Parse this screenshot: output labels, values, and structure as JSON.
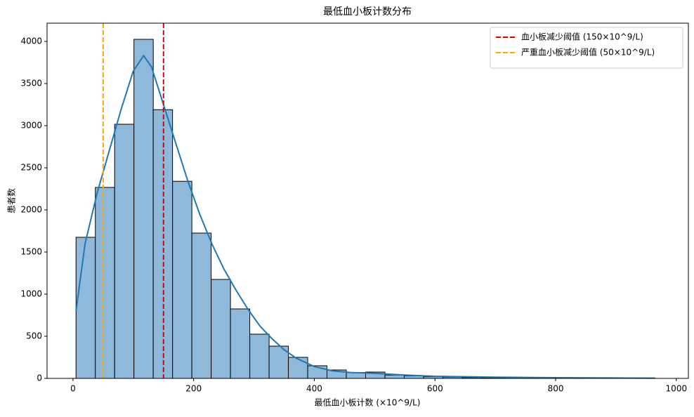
{
  "chart_data": {
    "type": "histogram",
    "title": "最低血小板计数分布",
    "xlabel": "最低血小板计数 (×10^9/L)",
    "ylabel": "患者数",
    "bins": [
      5,
      37,
      69,
      101,
      133,
      165,
      197,
      229,
      261,
      293,
      325,
      357,
      389,
      421,
      453,
      485,
      517,
      549,
      581,
      613,
      645,
      677,
      709,
      741,
      773,
      805,
      837,
      869,
      901,
      933,
      965
    ],
    "values": [
      1675,
      2267,
      3017,
      4025,
      3190,
      2340,
      1725,
      1175,
      825,
      525,
      383,
      250,
      150,
      100,
      70,
      75,
      40,
      30,
      20,
      15,
      10,
      8,
      6,
      5,
      4,
      3,
      2,
      2,
      1,
      1
    ],
    "color": "#8fb9da",
    "edgecolor": "#000000",
    "kde": {
      "color": "#1f77b4",
      "x": [
        5,
        20,
        40,
        60,
        80,
        100,
        117,
        130,
        150,
        170,
        190,
        210,
        230,
        250,
        270,
        290,
        310,
        330,
        350,
        370,
        400,
        430,
        460,
        500,
        550,
        600,
        700,
        800,
        900,
        965
      ],
      "values": [
        800,
        1600,
        2200,
        2700,
        3200,
        3650,
        3830,
        3700,
        3250,
        2800,
        2350,
        1950,
        1600,
        1300,
        1050,
        820,
        620,
        470,
        340,
        240,
        140,
        90,
        70,
        60,
        40,
        25,
        15,
        8,
        5,
        3
      ]
    },
    "lines": [
      {
        "name": "血小板减少阈值 (150×10^9/L)",
        "value": 150,
        "color": "#e00000"
      },
      {
        "name": "严重血小板减少阈值 (50×10^9/L)",
        "value": 50,
        "color": "#ffa500"
      }
    ],
    "xlim": [
      -43,
      1020
    ],
    "ylim": [
      0,
      4217
    ],
    "xticks": [
      0,
      200,
      400,
      600,
      800,
      1000
    ],
    "yticks": [
      0,
      500,
      1000,
      1500,
      2000,
      2500,
      3000,
      3500,
      4000
    ],
    "legend": "upper right"
  }
}
